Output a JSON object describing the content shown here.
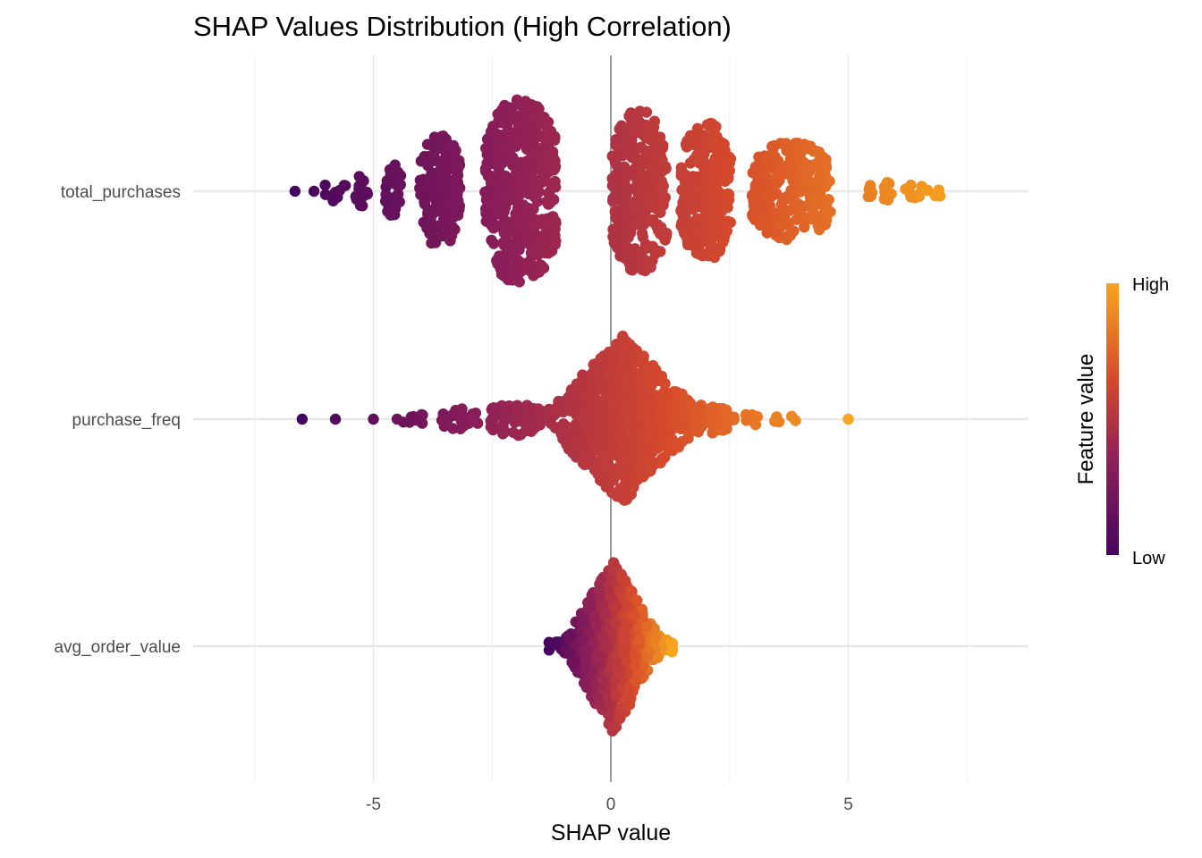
{
  "chart_data": {
    "type": "scatter",
    "subtype": "beeswarm",
    "title": "SHAP Values Distribution (High Correlation)",
    "xlabel": "SHAP value",
    "ylabel": "",
    "xlim": [
      -7.5,
      8.8
    ],
    "x_ticks": [
      -5,
      0,
      5
    ],
    "x_tick_labels": [
      "-5",
      "0",
      "5"
    ],
    "minor_grid_x": [
      -7.5,
      -2.5,
      2.5,
      7.5
    ],
    "grid": true,
    "zero_line": 0,
    "categories": [
      "total_purchases",
      "purchase_freq",
      "avg_order_value"
    ],
    "series": [
      {
        "name": "total_purchases",
        "min": -6.8,
        "max": 7.3,
        "clusters": [
          {
            "center": -6.65,
            "width": 0.1,
            "height": 0.04,
            "n": 1,
            "shape": "flat"
          },
          {
            "center": -6.25,
            "width": 0.1,
            "height": 0.04,
            "n": 1,
            "shape": "flat"
          },
          {
            "center": -5.8,
            "width": 0.45,
            "height": 0.1,
            "n": 9,
            "shape": "flat"
          },
          {
            "center": -5.25,
            "width": 0.25,
            "height": 0.15,
            "n": 14,
            "shape": "flat"
          },
          {
            "center": -4.6,
            "width": 0.35,
            "height": 0.27,
            "n": 40,
            "shape": "flat"
          },
          {
            "center": -3.6,
            "width": 0.85,
            "height": 0.53,
            "n": 170,
            "shape": "flat"
          },
          {
            "center": -1.9,
            "width": 1.5,
            "height": 0.88,
            "n": 420,
            "shape": "flat"
          },
          {
            "center": 0.6,
            "width": 1.15,
            "height": 0.77,
            "n": 300,
            "shape": "flat"
          },
          {
            "center": 2.0,
            "width": 1.05,
            "height": 0.66,
            "n": 240,
            "shape": "flat"
          },
          {
            "center": 3.8,
            "width": 1.65,
            "height": 0.47,
            "n": 250,
            "shape": "flat"
          },
          {
            "center": 5.7,
            "width": 0.6,
            "height": 0.1,
            "n": 16,
            "shape": "flat"
          },
          {
            "center": 6.6,
            "width": 0.8,
            "height": 0.08,
            "n": 14,
            "shape": "flat"
          }
        ]
      },
      {
        "name": "purchase_freq",
        "min": -6.5,
        "max": 5.0,
        "clusters": [
          {
            "center": -6.5,
            "width": 0.05,
            "height": 0.02,
            "n": 1,
            "shape": "flat"
          },
          {
            "center": -5.8,
            "width": 0.05,
            "height": 0.02,
            "n": 1,
            "shape": "flat"
          },
          {
            "center": -5.0,
            "width": 0.05,
            "height": 0.02,
            "n": 1,
            "shape": "flat"
          },
          {
            "center": -4.5,
            "width": 0.05,
            "height": 0.02,
            "n": 1,
            "shape": "flat"
          },
          {
            "center": -4.2,
            "width": 0.6,
            "height": 0.06,
            "n": 8,
            "shape": "flat"
          },
          {
            "center": -3.2,
            "width": 0.8,
            "height": 0.1,
            "n": 30,
            "shape": "flat"
          },
          {
            "center": -2.0,
            "width": 1.1,
            "height": 0.16,
            "n": 80,
            "shape": "flat"
          },
          {
            "center": 0.25,
            "width": 2.1,
            "height": 0.8,
            "n": 800,
            "shape": "diamond"
          },
          {
            "center": 1.9,
            "width": 1.2,
            "height": 0.14,
            "n": 60,
            "shape": "flat"
          },
          {
            "center": 3.3,
            "width": 1.3,
            "height": 0.06,
            "n": 12,
            "shape": "flat"
          },
          {
            "center": 5.0,
            "width": 0.05,
            "height": 0.02,
            "n": 1,
            "shape": "flat"
          }
        ]
      },
      {
        "name": "avg_order_value",
        "min": -1.3,
        "max": 1.3,
        "clusters": [
          {
            "center": -1.25,
            "width": 0.1,
            "height": 0.02,
            "n": 1,
            "shape": "flat"
          },
          {
            "center": 0.05,
            "width": 1.3,
            "height": 0.82,
            "n": 650,
            "shape": "diamond"
          },
          {
            "center": 1.1,
            "width": 0.4,
            "height": 0.1,
            "n": 12,
            "shape": "flat"
          }
        ]
      }
    ],
    "legend": {
      "title": "Feature value",
      "labels": [
        "High",
        "Low"
      ],
      "position": "right",
      "gradient": [
        "#fca636",
        "#e16462",
        "#b12a90",
        "#6a00a8",
        "#3b0f70"
      ]
    }
  }
}
